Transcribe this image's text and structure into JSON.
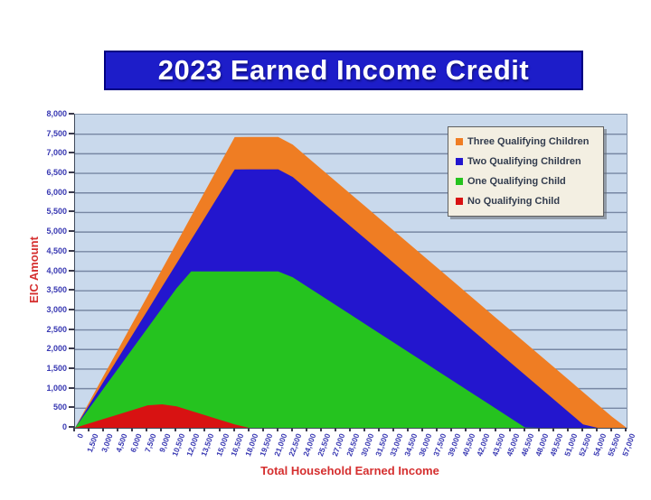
{
  "title_banner": {
    "text": "2023 Earned Income Credit",
    "bg_color": "#1d1dc9",
    "border_color": "#000082",
    "text_color": "#ffffff"
  },
  "style": {
    "plot_background": "#c9d9ec",
    "gridline_color": "#7787a3",
    "tick_label_color": "#3737b2",
    "axis_title_color": "#d52f2f",
    "legend_background": "#f3efe2"
  },
  "chart_data": {
    "type": "area",
    "title": "2023 Earned Income Credit",
    "xlabel": "Total Household Earned Income",
    "ylabel": "EIC Amount",
    "ylim": [
      0,
      8000
    ],
    "ytick_step": 500,
    "grid": "horizontal",
    "legend_position": "top-right",
    "overlap_mode": "overlapping",
    "x": [
      0,
      1500,
      3000,
      4500,
      6000,
      7500,
      9000,
      10500,
      12000,
      13500,
      15000,
      16500,
      18000,
      19500,
      21000,
      22500,
      24000,
      25500,
      27000,
      28500,
      30000,
      31500,
      33000,
      34500,
      36000,
      37500,
      39000,
      40500,
      42000,
      43500,
      45000,
      46500,
      48000,
      49500,
      51000,
      52500,
      54000,
      55500,
      57000
    ],
    "series": [
      {
        "name": "Three Qualifying Children",
        "color": "#ef7d23",
        "values": [
          0,
          675,
          1350,
          2025,
          2700,
          3375,
          4050,
          4725,
          5400,
          6075,
          6750,
          7425,
          7430,
          7430,
          7430,
          7232,
          6916,
          6600,
          6284,
          5968,
          5652,
          5337,
          5021,
          4705,
          4389,
          4073,
          3757,
          3441,
          3125,
          2809,
          2493,
          2178,
          1862,
          1546,
          1230,
          914,
          598,
          282,
          0
        ]
      },
      {
        "name": "Two Qualifying Children",
        "color": "#2316ce",
        "values": [
          0,
          600,
          1200,
          1800,
          2400,
          3000,
          3600,
          4200,
          4800,
          5400,
          6000,
          6600,
          6604,
          6604,
          6604,
          6406,
          6090,
          5774,
          5458,
          5142,
          4827,
          4511,
          4195,
          3879,
          3563,
          3247,
          2931,
          2615,
          2299,
          1983,
          1668,
          1352,
          1036,
          720,
          404,
          88,
          0,
          0,
          0
        ]
      },
      {
        "name": "One Qualifying Child",
        "color": "#25c31f",
        "values": [
          0,
          510,
          1020,
          1530,
          2040,
          2550,
          3060,
          3570,
          3995,
          3995,
          3995,
          3995,
          3995,
          3995,
          3995,
          3845,
          3605,
          3365,
          3126,
          2886,
          2646,
          2407,
          2167,
          1927,
          1688,
          1448,
          1208,
          968,
          729,
          489,
          249,
          10,
          0,
          0,
          0,
          0,
          0,
          0,
          0
        ]
      },
      {
        "name": "No Qualifying Child",
        "color": "#d81212",
        "values": [
          0,
          115,
          230,
          344,
          459,
          574,
          600,
          546,
          432,
          317,
          202,
          87,
          0,
          0,
          0,
          0,
          0,
          0,
          0,
          0,
          0,
          0,
          0,
          0,
          0,
          0,
          0,
          0,
          0,
          0,
          0,
          0,
          0,
          0,
          0,
          0,
          0,
          0,
          0
        ]
      }
    ]
  }
}
